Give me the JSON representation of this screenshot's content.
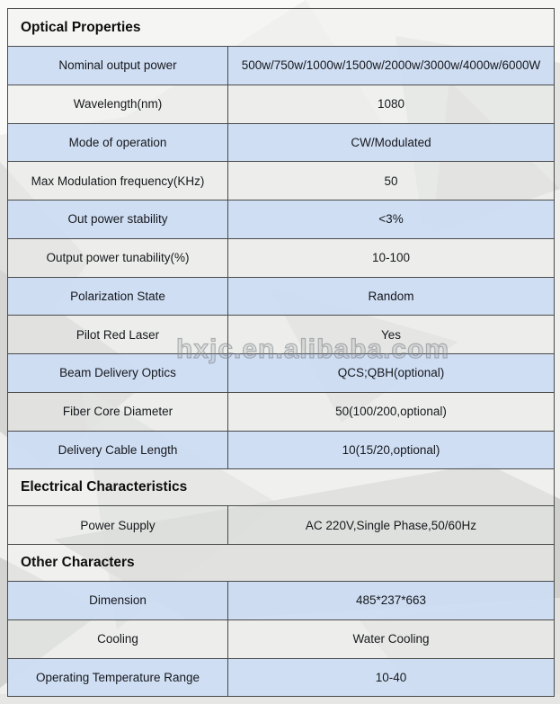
{
  "watermark": "hxjc.en.alibaba.com",
  "colors": {
    "row_blue": "#cdddf2",
    "row_gray": "#ebecea",
    "border": "#4a4a4a",
    "page_background": "#efefee"
  },
  "sections": [
    {
      "title": "Optical Properties",
      "rows": [
        {
          "label": "Nominal output power",
          "value": "500w/750w/1000w/1500w/2000w/3000w/4000w/6000W"
        },
        {
          "label": "Wavelength(nm)",
          "value": "1080"
        },
        {
          "label": "Mode of operation",
          "value": "CW/Modulated"
        },
        {
          "label": "Max Modulation frequency(KHz)",
          "value": "50"
        },
        {
          "label": "Out power stability",
          "value": "<3%"
        },
        {
          "label": "Output power tunability(%)",
          "value": "10-100"
        },
        {
          "label": "Polarization State",
          "value": "Random"
        },
        {
          "label": "Pilot Red Laser",
          "value": "Yes"
        },
        {
          "label": "Beam Delivery Optics",
          "value": "QCS;QBH(optional)"
        },
        {
          "label": "Fiber Core Diameter",
          "value": "50(100/200,optional)"
        },
        {
          "label": "Delivery Cable Length",
          "value": "10(15/20,optional)"
        }
      ]
    },
    {
      "title": "Electrical Characteristics",
      "rows": [
        {
          "label": "Power Supply",
          "value": "AC 220V,Single Phase,50/60Hz"
        }
      ]
    },
    {
      "title": "Other Characters",
      "rows": [
        {
          "label": "Dimension",
          "value": "485*237*663"
        },
        {
          "label": "Cooling",
          "value": "Water Cooling"
        },
        {
          "label": "Operating Temperature Range",
          "value": "10-40"
        }
      ]
    }
  ]
}
